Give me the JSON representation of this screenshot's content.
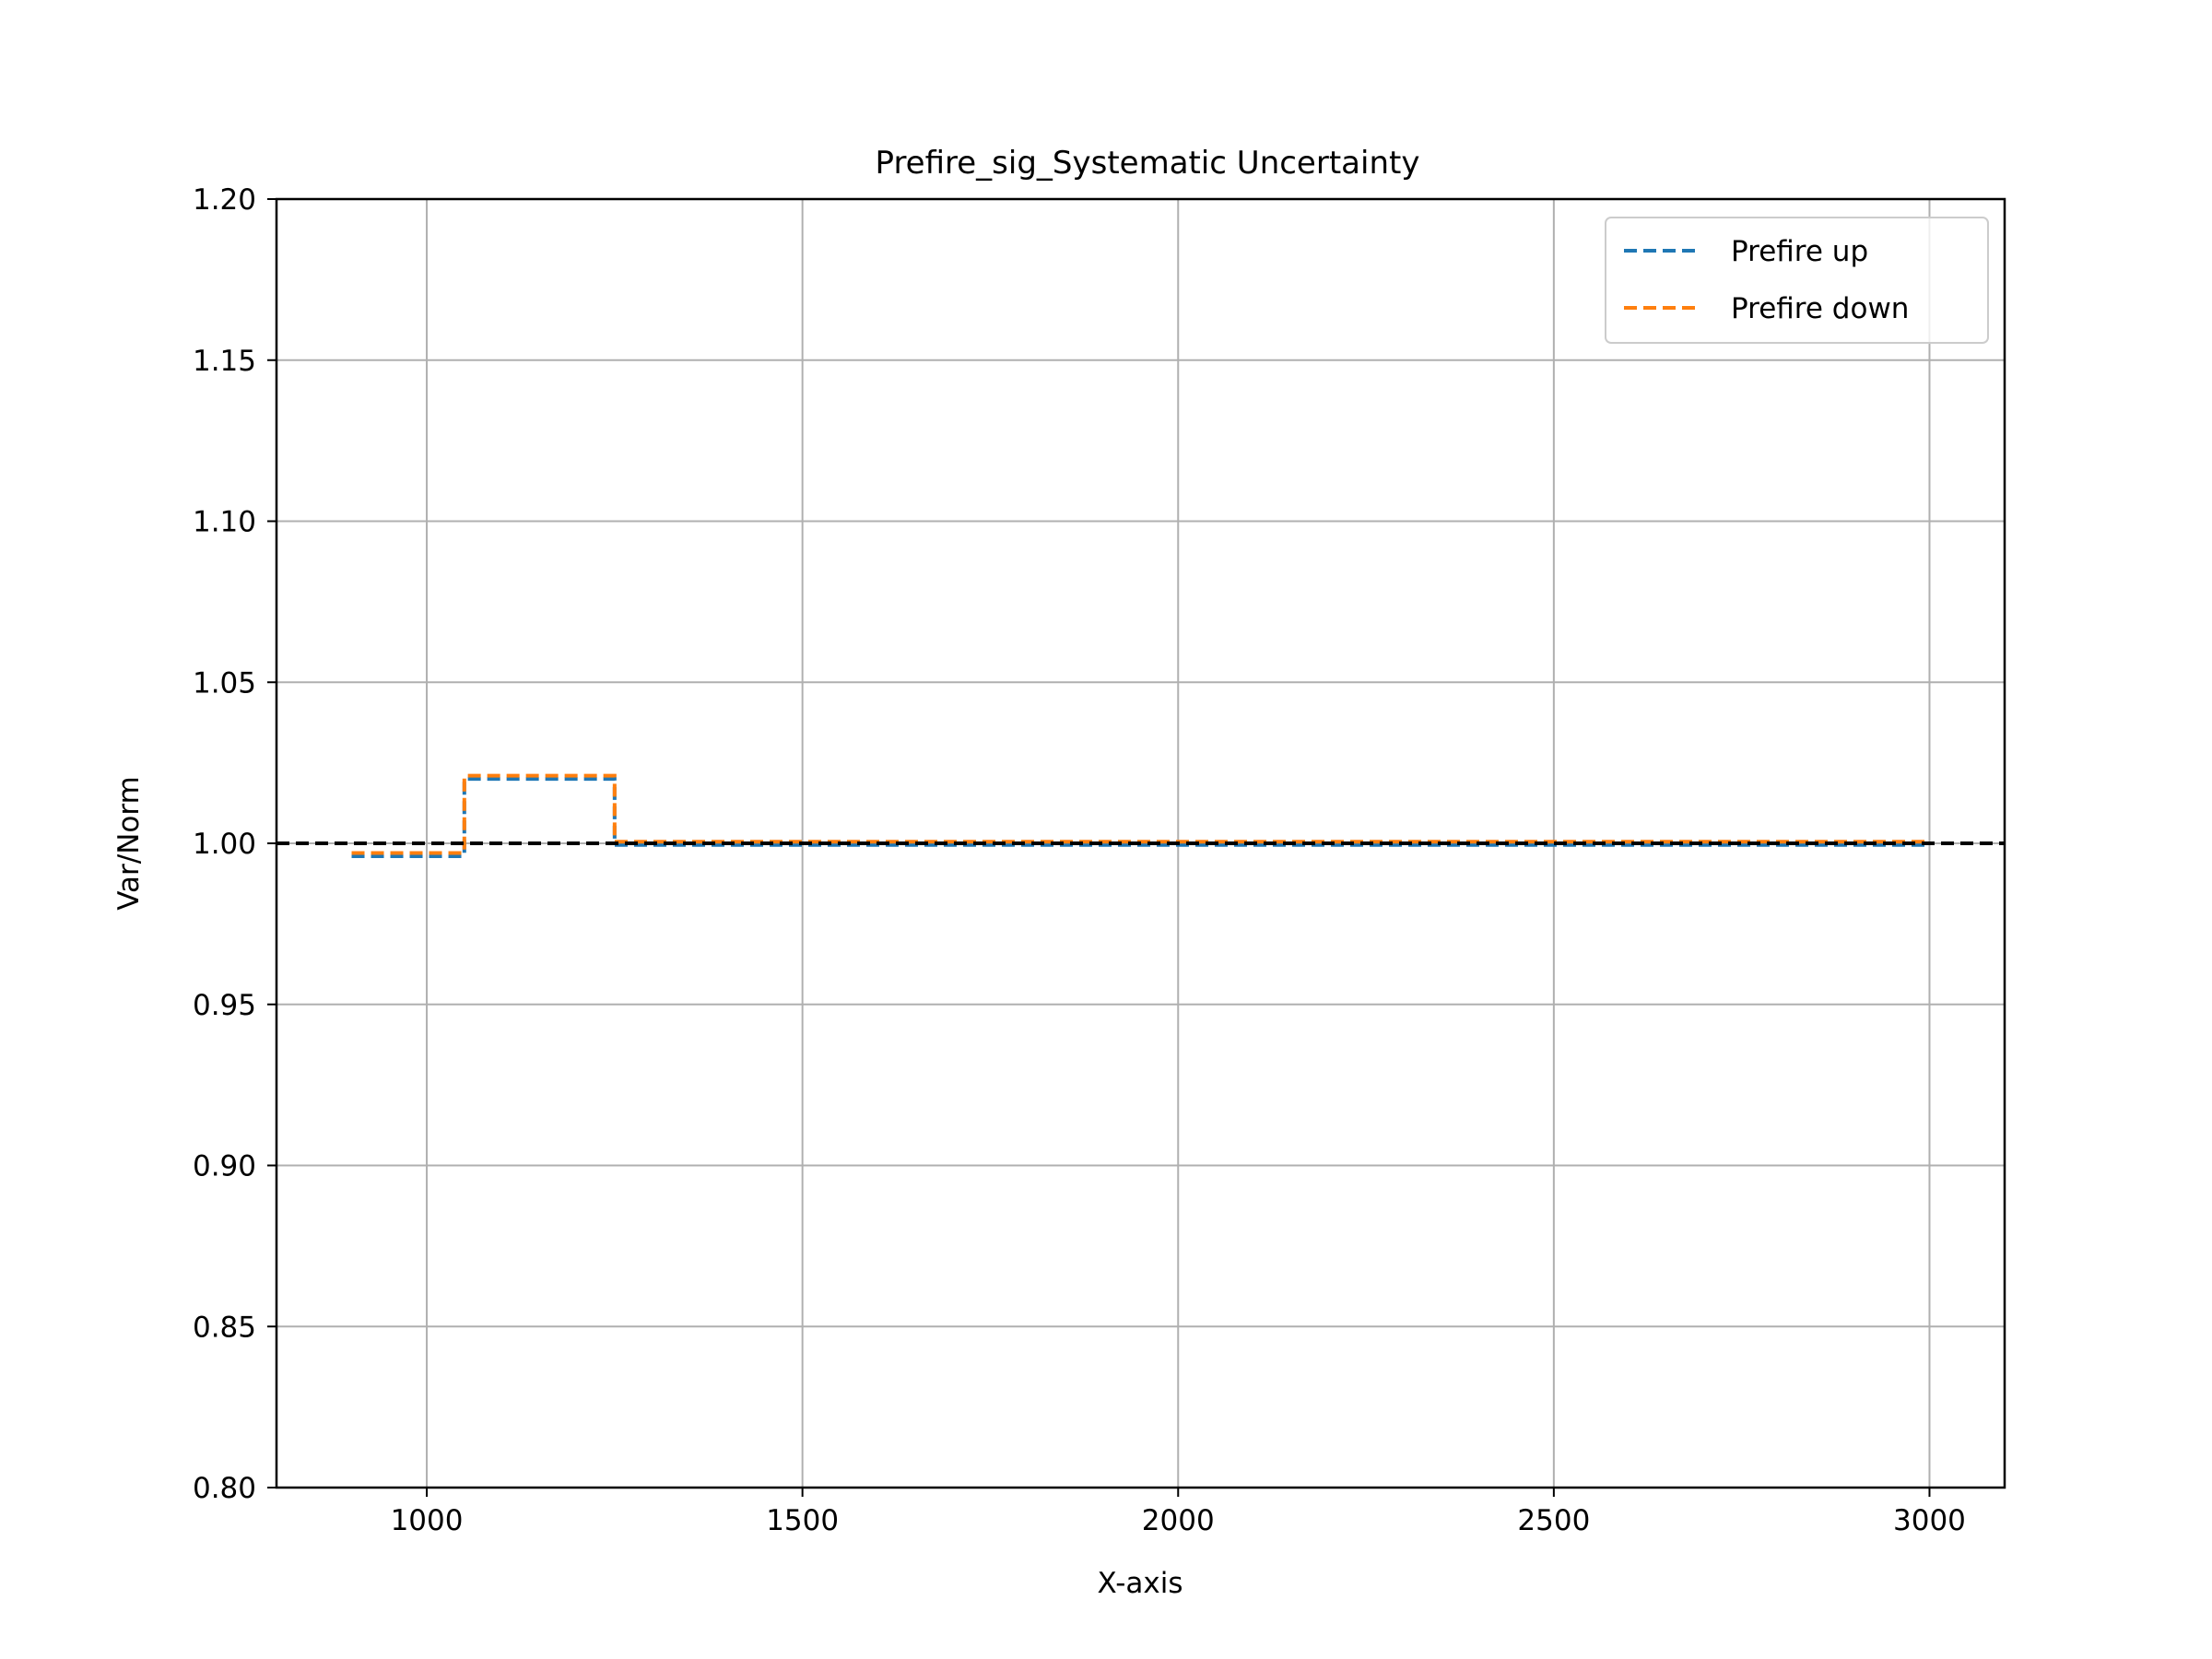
{
  "chart_data": {
    "type": "line",
    "title": "Prefire_sig_Systematic Uncertainty",
    "xlabel": "X-axis",
    "ylabel": "Var/Norm",
    "xlim": [
      800,
      3100
    ],
    "ylim": [
      0.8,
      1.2
    ],
    "xticks": [
      1000,
      1500,
      2000,
      2500,
      3000
    ],
    "yticks": [
      0.8,
      0.85,
      0.9,
      0.95,
      1.0,
      1.05,
      1.1,
      1.15,
      1.2
    ],
    "grid": true,
    "legend_position": "upper right",
    "step": "post",
    "series": [
      {
        "name": "Prefire up",
        "color": "#1f77b4",
        "linestyle": "dashed",
        "x": [
          900,
          1050,
          1250,
          3000
        ],
        "y": [
          0.996,
          1.02,
          0.9995,
          0.9995
        ]
      },
      {
        "name": "Prefire down",
        "color": "#ff7f0e",
        "linestyle": "dashed",
        "x": [
          900,
          1050,
          1250,
          3000
        ],
        "y": [
          0.997,
          1.021,
          1.0005,
          1.0005
        ]
      }
    ],
    "reference_line": {
      "y": 1.0,
      "color": "#000000",
      "linestyle": "dashed"
    }
  }
}
